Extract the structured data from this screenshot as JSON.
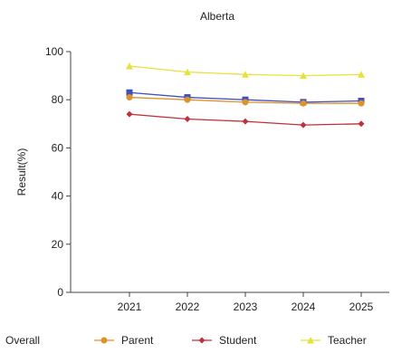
{
  "chart_data": {
    "type": "line",
    "title": "Alberta",
    "ylabel": "Result(%)",
    "xlabel": "",
    "categories": [
      "2021",
      "2022",
      "2023",
      "2024",
      "2025"
    ],
    "ylim": [
      0,
      100
    ],
    "yticks": [
      0,
      20,
      40,
      60,
      80,
      100
    ],
    "grid": false,
    "legend_position": "bottom",
    "series": [
      {
        "name": "Overall",
        "color": "#3f4fbf",
        "marker": "square",
        "values": [
          83,
          81,
          80,
          79,
          79.5
        ]
      },
      {
        "name": "Parent",
        "color": "#e0922a",
        "marker": "circle",
        "values": [
          81,
          80,
          79,
          78.5,
          78.5
        ]
      },
      {
        "name": "Student",
        "color": "#c0303a",
        "marker": "diamond",
        "values": [
          74,
          72,
          71,
          69.5,
          70
        ]
      },
      {
        "name": "Teacher",
        "color": "#e6e23a",
        "marker": "triangle",
        "values": [
          94,
          91.5,
          90.5,
          90,
          90.5
        ]
      }
    ]
  }
}
